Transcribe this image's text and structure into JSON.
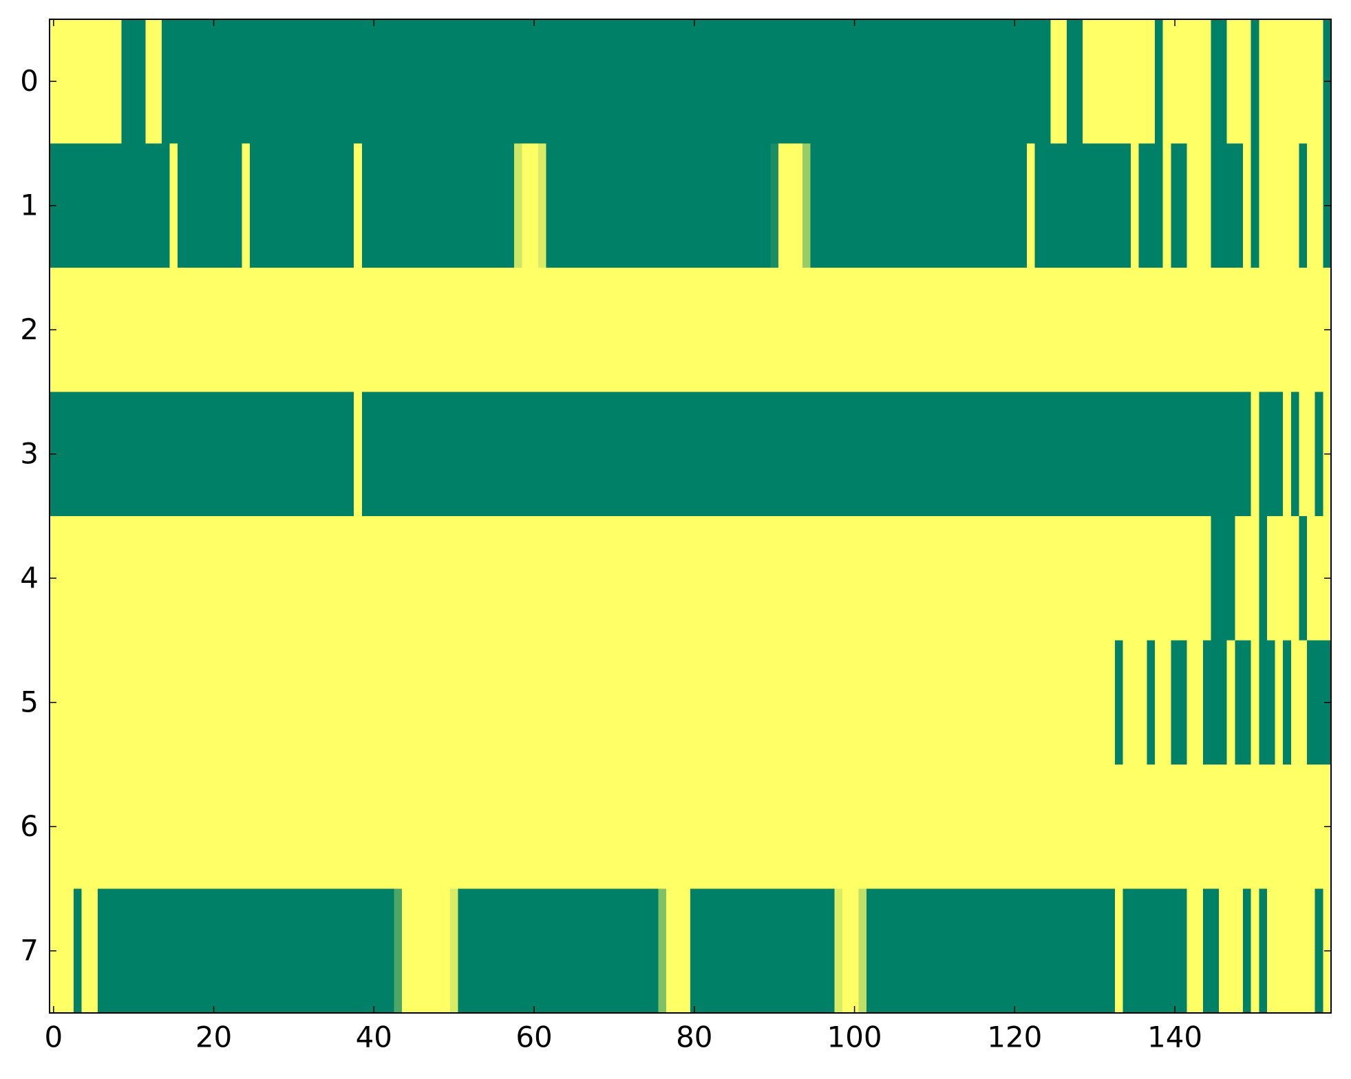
{
  "chart_data": {
    "type": "heatmap",
    "colors": [
      "#008066",
      "#ffff66"
    ],
    "xlim": [
      -0.5,
      159.5
    ],
    "ylim": [
      7.5,
      -0.5
    ],
    "xticks": [
      0,
      20,
      40,
      60,
      80,
      100,
      120,
      140
    ],
    "yticks": [
      0,
      1,
      2,
      3,
      4,
      5,
      6,
      7
    ],
    "z": [
      [
        1,
        1,
        1,
        1,
        1,
        1,
        1,
        1,
        1,
        0,
        0,
        0,
        1,
        1,
        0,
        0,
        0,
        0,
        0,
        0,
        0,
        0,
        0,
        0,
        0,
        0,
        0,
        0,
        0,
        0,
        0,
        0,
        0,
        0,
        0,
        0,
        0,
        0,
        0,
        0,
        0,
        0,
        0,
        0,
        0,
        0,
        0,
        0,
        0,
        0,
        0,
        0,
        0,
        0,
        0,
        0,
        0,
        0,
        0,
        0,
        0,
        0,
        0,
        0,
        0,
        0,
        0,
        0,
        0,
        0,
        0,
        0,
        0,
        0,
        0,
        0,
        0,
        0,
        0,
        0,
        0,
        0,
        0,
        0,
        0,
        0,
        0,
        0,
        0,
        0,
        0,
        0,
        0,
        0,
        0,
        0,
        0,
        0,
        0,
        0,
        0,
        0,
        0,
        0,
        0,
        0,
        0,
        0,
        0,
        0,
        0,
        0,
        0,
        0,
        0,
        0,
        0,
        0,
        0,
        0,
        0,
        0,
        0,
        0,
        0,
        1,
        1,
        0,
        0,
        1,
        1,
        1,
        1,
        1,
        1,
        1,
        1,
        1,
        0,
        1,
        1,
        1,
        1,
        1,
        1,
        0,
        0,
        1,
        1,
        1,
        0,
        1,
        1,
        1,
        1,
        1,
        1,
        1,
        1,
        0
      ],
      [
        0,
        0,
        0,
        0,
        0,
        0,
        0,
        0,
        0,
        0,
        0,
        0,
        0,
        0,
        0,
        1,
        0,
        0,
        0,
        0,
        0,
        0,
        0,
        0,
        1,
        0,
        0,
        0,
        0,
        0,
        0,
        0,
        0,
        0,
        0,
        0,
        0,
        0,
        1,
        0,
        0,
        0,
        0,
        0,
        0,
        0,
        0,
        0,
        0,
        0,
        0,
        0,
        0,
        0,
        0,
        0,
        0,
        0,
        0.8,
        1,
        1,
        0.85,
        0,
        0,
        0,
        0,
        0,
        0,
        0,
        0,
        0,
        0,
        0,
        0,
        0,
        0,
        0,
        0,
        0,
        0,
        0,
        0,
        0,
        0,
        0,
        0,
        0,
        0,
        0,
        0,
        0.1,
        1,
        1,
        1,
        0.6,
        0,
        0,
        0,
        0,
        0,
        0,
        0,
        0,
        0,
        0,
        0,
        0,
        0,
        0,
        0,
        0,
        0,
        0,
        0,
        0,
        0,
        0,
        0,
        0,
        0,
        0,
        0,
        1,
        0,
        0,
        0,
        0,
        0,
        0,
        0,
        0,
        0,
        0,
        0,
        0,
        1,
        0,
        0,
        0,
        1,
        0,
        0,
        1,
        1,
        1,
        0,
        0,
        0,
        0,
        1,
        0,
        1,
        1,
        1,
        1,
        1,
        0,
        1,
        1,
        0
      ],
      [
        1,
        1,
        1,
        1,
        1,
        1,
        1,
        1,
        1,
        1,
        1,
        1,
        1,
        1,
        1,
        1,
        1,
        1,
        1,
        1,
        1,
        1,
        1,
        1,
        1,
        1,
        1,
        1,
        1,
        1,
        1,
        1,
        1,
        1,
        1,
        1,
        1,
        1,
        1,
        1,
        1,
        1,
        1,
        1,
        1,
        1,
        1,
        1,
        1,
        1,
        1,
        1,
        1,
        1,
        1,
        1,
        1,
        1,
        1,
        1,
        1,
        1,
        1,
        1,
        1,
        1,
        1,
        1,
        1,
        1,
        1,
        1,
        1,
        1,
        1,
        1,
        1,
        1,
        1,
        1,
        1,
        1,
        1,
        1,
        1,
        1,
        1,
        1,
        1,
        1,
        1,
        1,
        1,
        1,
        1,
        1,
        1,
        1,
        1,
        1,
        1,
        1,
        1,
        1,
        1,
        1,
        1,
        1,
        1,
        1,
        1,
        1,
        1,
        1,
        1,
        1,
        1,
        1,
        1,
        1,
        1,
        1,
        1,
        1,
        1,
        1,
        1,
        1,
        1,
        1,
        1,
        1,
        1,
        1,
        1,
        1,
        1,
        1,
        1,
        1,
        1,
        1,
        1,
        1,
        1,
        1,
        1,
        1,
        1,
        1,
        1,
        1,
        1,
        1,
        1,
        1,
        1,
        1,
        1,
        1
      ],
      [
        0,
        0,
        0,
        0,
        0,
        0,
        0,
        0,
        0,
        0,
        0,
        0,
        0,
        0,
        0,
        0,
        0,
        0,
        0,
        0,
        0,
        0,
        0,
        0,
        0,
        0,
        0,
        0,
        0,
        0,
        0,
        0,
        0,
        0,
        0,
        0,
        0,
        0,
        1,
        0,
        0,
        0,
        0,
        0,
        0,
        0,
        0,
        0,
        0,
        0,
        0,
        0,
        0,
        0,
        0,
        0,
        0,
        0,
        0,
        0,
        0,
        0,
        0,
        0,
        0,
        0,
        0,
        0,
        0,
        0,
        0,
        0,
        0,
        0,
        0,
        0,
        0,
        0,
        0,
        0,
        0,
        0,
        0,
        0,
        0,
        0,
        0,
        0,
        0,
        0,
        0,
        0,
        0,
        0,
        0,
        0,
        0,
        0,
        0,
        0,
        0,
        0,
        0,
        0,
        0,
        0,
        0,
        0,
        0,
        0,
        0,
        0,
        0,
        0,
        0,
        0,
        0,
        0,
        0,
        0,
        0,
        0,
        0,
        0,
        0,
        0,
        0,
        0,
        0,
        0,
        0,
        0,
        0,
        0,
        0,
        0,
        0,
        0,
        0,
        0,
        0,
        0,
        0,
        0,
        0,
        0,
        0,
        0,
        0,
        0,
        1,
        0,
        0,
        0,
        1,
        0,
        1,
        1,
        0,
        1
      ],
      [
        1,
        1,
        1,
        1,
        1,
        1,
        1,
        1,
        1,
        1,
        1,
        1,
        1,
        1,
        1,
        1,
        1,
        1,
        1,
        1,
        1,
        1,
        1,
        1,
        1,
        1,
        1,
        1,
        1,
        1,
        1,
        1,
        1,
        1,
        1,
        1,
        1,
        1,
        1,
        1,
        1,
        1,
        1,
        1,
        1,
        1,
        1,
        1,
        1,
        1,
        1,
        1,
        1,
        1,
        1,
        1,
        1,
        1,
        1,
        1,
        1,
        1,
        1,
        1,
        1,
        1,
        1,
        1,
        1,
        1,
        1,
        1,
        1,
        1,
        1,
        1,
        1,
        1,
        1,
        1,
        1,
        1,
        1,
        1,
        1,
        1,
        1,
        1,
        1,
        1,
        1,
        1,
        1,
        1,
        1,
        1,
        1,
        1,
        1,
        1,
        1,
        1,
        1,
        1,
        1,
        1,
        1,
        1,
        1,
        1,
        1,
        1,
        1,
        1,
        1,
        1,
        1,
        1,
        1,
        1,
        1,
        1,
        1,
        1,
        1,
        1,
        1,
        1,
        1,
        1,
        1,
        1,
        1,
        1,
        1,
        1,
        1,
        1,
        1,
        1,
        1,
        1,
        1,
        1,
        1,
        0,
        0,
        0,
        1,
        1,
        1,
        0,
        1,
        1,
        1,
        1,
        0,
        1,
        1,
        1
      ],
      [
        1,
        1,
        1,
        1,
        1,
        1,
        1,
        1,
        1,
        1,
        1,
        1,
        1,
        1,
        1,
        1,
        1,
        1,
        1,
        1,
        1,
        1,
        1,
        1,
        1,
        1,
        1,
        1,
        1,
        1,
        1,
        1,
        1,
        1,
        1,
        1,
        1,
        1,
        1,
        1,
        1,
        1,
        1,
        1,
        1,
        1,
        1,
        1,
        1,
        1,
        1,
        1,
        1,
        1,
        1,
        1,
        1,
        1,
        1,
        1,
        1,
        1,
        1,
        1,
        1,
        1,
        1,
        1,
        1,
        1,
        1,
        1,
        1,
        1,
        1,
        1,
        1,
        1,
        1,
        1,
        1,
        1,
        1,
        1,
        1,
        1,
        1,
        1,
        1,
        1,
        1,
        1,
        1,
        1,
        1,
        1,
        1,
        1,
        1,
        1,
        1,
        1,
        1,
        1,
        1,
        1,
        1,
        1,
        1,
        1,
        1,
        1,
        1,
        1,
        1,
        1,
        1,
        1,
        1,
        1,
        1,
        1,
        1,
        1,
        1,
        1,
        1,
        1,
        1,
        1,
        1,
        1,
        1,
        0,
        1,
        1,
        1,
        0,
        1,
        1,
        0,
        0,
        1,
        1,
        0,
        0,
        0,
        1,
        0,
        0,
        1,
        0,
        0,
        1,
        0,
        1,
        1,
        0,
        0,
        0
      ],
      [
        1,
        1,
        1,
        1,
        1,
        1,
        1,
        1,
        1,
        1,
        1,
        1,
        1,
        1,
        1,
        1,
        1,
        1,
        1,
        1,
        1,
        1,
        1,
        1,
        1,
        1,
        1,
        1,
        1,
        1,
        1,
        1,
        1,
        1,
        1,
        1,
        1,
        1,
        1,
        1,
        1,
        1,
        1,
        1,
        1,
        1,
        1,
        1,
        1,
        1,
        1,
        1,
        1,
        1,
        1,
        1,
        1,
        1,
        1,
        1,
        1,
        1,
        1,
        1,
        1,
        1,
        1,
        1,
        1,
        1,
        1,
        1,
        1,
        1,
        1,
        1,
        1,
        1,
        1,
        1,
        1,
        1,
        1,
        1,
        1,
        1,
        1,
        1,
        1,
        1,
        1,
        1,
        1,
        1,
        1,
        1,
        1,
        1,
        1,
        1,
        1,
        1,
        1,
        1,
        1,
        1,
        1,
        1,
        1,
        1,
        1,
        1,
        1,
        1,
        1,
        1,
        1,
        1,
        1,
        1,
        1,
        1,
        1,
        1,
        1,
        1,
        1,
        1,
        1,
        1,
        1,
        1,
        1,
        1,
        1,
        1,
        1,
        1,
        1,
        1,
        1,
        1,
        1,
        1,
        1,
        1,
        1,
        1,
        1,
        1,
        1,
        1,
        1,
        1,
        1,
        1,
        1,
        1,
        1,
        1
      ],
      [
        1,
        1,
        1,
        0,
        1,
        1,
        0,
        0,
        0,
        0,
        0,
        0,
        0,
        0,
        0,
        0,
        0,
        0,
        0,
        0,
        0,
        0,
        0,
        0,
        0,
        0,
        0,
        0,
        0,
        0,
        0,
        0,
        0,
        0,
        0,
        0,
        0,
        0,
        0,
        0,
        0,
        0,
        0,
        0.3,
        1,
        1,
        1,
        1,
        1,
        1,
        0.85,
        0,
        0,
        0,
        0,
        0,
        0,
        0,
        0,
        0,
        0,
        0,
        0,
        0,
        0,
        0,
        0,
        0,
        0,
        0,
        0,
        0,
        0,
        0,
        0,
        0,
        0.5,
        1,
        1,
        1,
        0,
        0,
        0,
        0,
        0,
        0,
        0,
        0,
        0,
        0,
        0,
        0,
        0,
        0,
        0,
        0,
        0,
        0,
        0.85,
        1,
        1,
        0.75,
        0,
        0,
        0,
        0,
        0,
        0,
        0,
        0,
        0,
        0,
        0,
        0,
        0,
        0,
        0,
        0,
        0,
        0,
        0,
        0,
        0,
        0,
        0,
        0,
        0,
        0,
        0,
        0,
        0,
        0,
        0,
        1,
        0,
        0,
        0,
        0,
        0,
        0,
        0,
        0,
        1,
        1,
        0,
        0,
        1,
        1,
        1,
        0,
        1,
        0,
        1,
        1,
        1,
        1,
        1,
        1,
        0,
        1
      ]
    ]
  }
}
